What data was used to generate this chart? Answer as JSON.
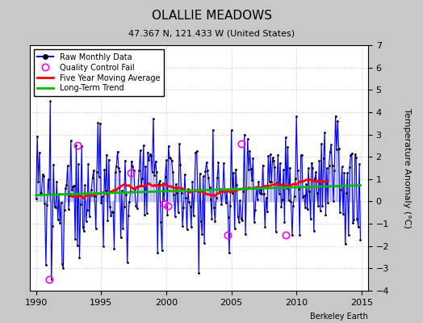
{
  "title": "OLALLIE MEADOWS",
  "subtitle": "47.367 N, 121.433 W (United States)",
  "ylabel": "Temperature Anomaly (°C)",
  "xlabel_years": [
    1990,
    1995,
    2000,
    2005,
    2010,
    2015
  ],
  "xlim": [
    1989.5,
    2015.5
  ],
  "ylim": [
    -4,
    7
  ],
  "yticks": [
    -4,
    -3,
    -2,
    -1,
    0,
    1,
    2,
    3,
    4,
    5,
    6,
    7
  ],
  "plot_bg": "#ffffff",
  "fig_bg": "#c8c8c8",
  "watermark": "Berkeley Earth",
  "raw_color": "#0000ff",
  "stem_color": "#8888ff",
  "ma_color": "#ff0000",
  "trend_color": "#00bb00",
  "qc_color": "#ff00ff",
  "title_fontsize": 11,
  "subtitle_fontsize": 8,
  "tick_fontsize": 8,
  "ylabel_fontsize": 8,
  "legend_fontsize": 7
}
